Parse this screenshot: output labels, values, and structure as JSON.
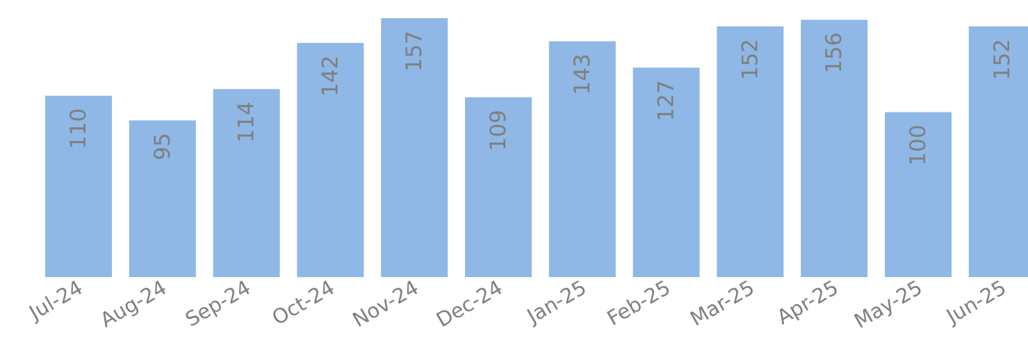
{
  "chart_data": {
    "type": "bar",
    "title": "",
    "xlabel": "",
    "ylabel": "",
    "categories": [
      "Jul-24",
      "Aug-24",
      "Sep-24",
      "Oct-24",
      "Nov-24",
      "Dec-24",
      "Jan-25",
      "Feb-25",
      "Mar-25",
      "Apr-25",
      "May-25",
      "Jun-25"
    ],
    "series": [
      {
        "values": [
          110,
          95,
          114,
          142,
          157,
          109,
          143,
          127,
          152,
          156,
          100,
          152
        ]
      }
    ],
    "ylim": [
      0,
      160
    ],
    "grid": false,
    "legend": "none",
    "data_labels": "inside-top-rotated",
    "colors": {
      "bar": "#8fb8e7",
      "label_text": "#7f7f7f",
      "background": "#ffffff"
    }
  }
}
